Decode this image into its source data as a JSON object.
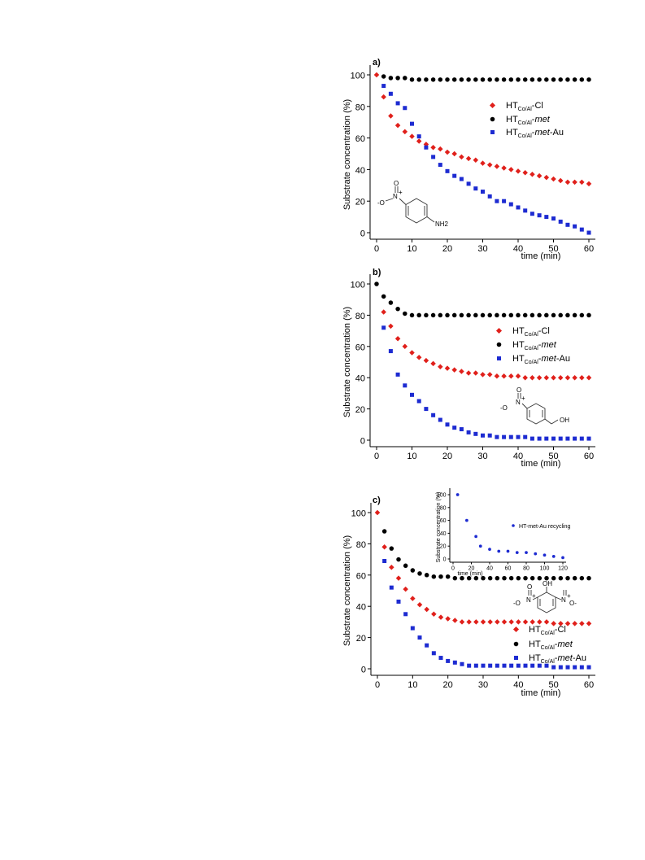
{
  "colors": {
    "red": "#e0201b",
    "black": "#000000",
    "blue": "#1d2bd1"
  },
  "chart_data": [
    {
      "panel": "a)",
      "type": "scatter",
      "xlabel": "time (min)",
      "ylabel": "Substrate concentration (%)",
      "xlim": [
        0,
        60
      ],
      "ylim": [
        0,
        100
      ],
      "xticks": [
        0,
        10,
        20,
        30,
        40,
        50,
        60
      ],
      "yticks": [
        0,
        20,
        40,
        60,
        80,
        100
      ],
      "legend_position": "center-right",
      "molecule": {
        "labels": [
          "O",
          "N",
          "+",
          "-O",
          "NH2"
        ]
      },
      "series": [
        {
          "name": "HT_Co/Al-Cl",
          "marker": "diamond",
          "color": "#e0201b",
          "x": [
            0,
            2,
            4,
            6,
            8,
            10,
            12,
            14,
            16,
            18,
            20,
            22,
            24,
            26,
            28,
            30,
            32,
            34,
            36,
            38,
            40,
            42,
            44,
            46,
            48,
            50,
            52,
            54,
            56,
            58,
            60
          ],
          "y": [
            100,
            86,
            74,
            68,
            64,
            61,
            58,
            56,
            54,
            53,
            51,
            50,
            48,
            47,
            46,
            44,
            43,
            42,
            41,
            40,
            39,
            38,
            37,
            36,
            35,
            34,
            33,
            32,
            32,
            32,
            31
          ]
        },
        {
          "name": "HT_Co/Al-met",
          "marker": "circle",
          "color": "#000000",
          "x": [
            2,
            4,
            6,
            8,
            10,
            12,
            14,
            16,
            18,
            20,
            22,
            24,
            26,
            28,
            30,
            32,
            34,
            36,
            38,
            40,
            42,
            44,
            46,
            48,
            50,
            52,
            54,
            56,
            58,
            60
          ],
          "y": [
            99,
            98,
            98,
            98,
            97,
            97,
            97,
            97,
            97,
            97,
            97,
            97,
            97,
            97,
            97,
            97,
            97,
            97,
            97,
            97,
            97,
            97,
            97,
            97,
            97,
            97,
            97,
            97,
            97,
            97
          ]
        },
        {
          "name": "HT_Co/Al-met-Au",
          "marker": "square",
          "color": "#1d2bd1",
          "x": [
            2,
            4,
            6,
            8,
            10,
            12,
            14,
            16,
            18,
            20,
            22,
            24,
            26,
            28,
            30,
            32,
            34,
            36,
            38,
            40,
            42,
            44,
            46,
            48,
            50,
            52,
            54,
            56,
            58,
            60
          ],
          "y": [
            93,
            88,
            82,
            79,
            69,
            61,
            54,
            48,
            43,
            39,
            36,
            34,
            31,
            28,
            26,
            23,
            20,
            20,
            18,
            16,
            14,
            12,
            11,
            10,
            9,
            7,
            5,
            4,
            2,
            0
          ]
        }
      ]
    },
    {
      "panel": "b)",
      "type": "scatter",
      "xlabel": "time (min)",
      "ylabel": "Substrate concentration (%)",
      "xlim": [
        0,
        60
      ],
      "ylim": [
        0,
        100
      ],
      "xticks": [
        0,
        10,
        20,
        30,
        40,
        50,
        60
      ],
      "yticks": [
        0,
        20,
        40,
        60,
        80,
        100
      ],
      "legend_position": "center-right",
      "molecule": {
        "labels": [
          "O",
          "N",
          "+",
          "-O",
          "OH"
        ]
      },
      "series": [
        {
          "name": "HT_Co/Al-Cl",
          "marker": "diamond",
          "color": "#e0201b",
          "x": [
            2,
            4,
            6,
            8,
            10,
            12,
            14,
            16,
            18,
            20,
            22,
            24,
            26,
            28,
            30,
            32,
            34,
            36,
            38,
            40,
            42,
            44,
            46,
            48,
            50,
            52,
            54,
            56,
            58,
            60
          ],
          "y": [
            82,
            73,
            65,
            60,
            56,
            53,
            51,
            49,
            47,
            46,
            45,
            44,
            43,
            43,
            42,
            42,
            41,
            41,
            41,
            41,
            40,
            40,
            40,
            40,
            40,
            40,
            40,
            40,
            40,
            40
          ]
        },
        {
          "name": "HT_Co/Al-met",
          "marker": "circle",
          "color": "#000000",
          "x": [
            0,
            2,
            4,
            6,
            8,
            10,
            12,
            14,
            16,
            18,
            20,
            22,
            24,
            26,
            28,
            30,
            32,
            34,
            36,
            38,
            40,
            42,
            44,
            46,
            48,
            50,
            52,
            54,
            56,
            58,
            60
          ],
          "y": [
            100,
            92,
            88,
            84,
            81,
            80,
            80,
            80,
            80,
            80,
            80,
            80,
            80,
            80,
            80,
            80,
            80,
            80,
            80,
            80,
            80,
            80,
            80,
            80,
            80,
            80,
            80,
            80,
            80,
            80,
            80
          ]
        },
        {
          "name": "HT_Co/Al-met-Au",
          "marker": "square",
          "color": "#1d2bd1",
          "x": [
            2,
            4,
            6,
            8,
            10,
            12,
            14,
            16,
            18,
            20,
            22,
            24,
            26,
            28,
            30,
            32,
            34,
            36,
            38,
            40,
            42,
            44,
            46,
            48,
            50,
            52,
            54,
            56,
            58,
            60
          ],
          "y": [
            72,
            57,
            42,
            35,
            29,
            25,
            20,
            16,
            13,
            10,
            8,
            7,
            5,
            4,
            3,
            3,
            2,
            2,
            2,
            2,
            2,
            1,
            1,
            1,
            1,
            1,
            1,
            1,
            1,
            1
          ]
        }
      ]
    },
    {
      "panel": "c)",
      "type": "scatter",
      "xlabel": "time (min)",
      "ylabel": "Substrate concentration (%)",
      "xlim": [
        0,
        60
      ],
      "ylim": [
        0,
        100
      ],
      "xticks": [
        0,
        10,
        20,
        30,
        40,
        50,
        60
      ],
      "yticks": [
        0,
        20,
        40,
        60,
        80,
        100
      ],
      "legend_position": "bottom-right",
      "molecule": {
        "labels": [
          "O",
          "N",
          "+",
          "OH",
          "N",
          "+",
          "-O",
          "O-"
        ]
      },
      "series": [
        {
          "name": "HT_Co/Al-Cl",
          "marker": "diamond",
          "color": "#e0201b",
          "x": [
            0,
            2,
            4,
            6,
            8,
            10,
            12,
            14,
            16,
            18,
            20,
            22,
            24,
            26,
            28,
            30,
            32,
            34,
            36,
            38,
            40,
            42,
            44,
            46,
            48,
            50,
            52,
            54,
            56,
            58,
            60
          ],
          "y": [
            100,
            78,
            65,
            58,
            51,
            45,
            41,
            38,
            35,
            33,
            32,
            31,
            30,
            30,
            30,
            30,
            30,
            30,
            30,
            30,
            30,
            30,
            30,
            30,
            30,
            29,
            29,
            29,
            29,
            29,
            29
          ]
        },
        {
          "name": "HT_Co/Al-met",
          "marker": "circle",
          "color": "#000000",
          "x": [
            2,
            4,
            6,
            8,
            10,
            12,
            14,
            16,
            18,
            20,
            22,
            24,
            26,
            28,
            30,
            32,
            34,
            36,
            38,
            40,
            42,
            44,
            46,
            48,
            50,
            52,
            54,
            56,
            58,
            60
          ],
          "y": [
            88,
            77,
            70,
            66,
            63,
            61,
            60,
            59,
            59,
            59,
            58,
            58,
            58,
            58,
            58,
            58,
            58,
            58,
            58,
            58,
            58,
            58,
            58,
            58,
            58,
            58,
            58,
            58,
            58,
            58
          ]
        },
        {
          "name": "HT_Co/Al-met-Au",
          "marker": "square",
          "color": "#1d2bd1",
          "x": [
            2,
            4,
            6,
            8,
            10,
            12,
            14,
            16,
            18,
            20,
            22,
            24,
            26,
            28,
            30,
            32,
            34,
            36,
            38,
            40,
            42,
            44,
            46,
            48,
            50,
            52,
            54,
            56,
            58,
            60
          ],
          "y": [
            69,
            52,
            43,
            35,
            26,
            20,
            15,
            10,
            7,
            5,
            4,
            3,
            2,
            2,
            2,
            2,
            2,
            2,
            2,
            2,
            2,
            2,
            2,
            2,
            1,
            1,
            1,
            1,
            1,
            1
          ]
        }
      ],
      "inset": {
        "type": "scatter",
        "xlabel": "time (min)",
        "ylabel": "Substrate concentration (%)",
        "xlim": [
          0,
          120
        ],
        "ylim": [
          0,
          100
        ],
        "xticks": [
          0,
          20,
          40,
          60,
          80,
          100,
          120
        ],
        "yticks": [
          0,
          20,
          40,
          60,
          80,
          100
        ],
        "legend": "HT-met-Au recycling",
        "series": [
          {
            "name": "HT-met-Au recycling",
            "marker": "circle",
            "color": "#1d2bd1",
            "x": [
              5,
              15,
              25,
              30,
              40,
              50,
              60,
              70,
              80,
              90,
              100,
              110,
              120
            ],
            "y": [
              100,
              60,
              35,
              20,
              15,
              12,
              12,
              10,
              10,
              8,
              6,
              4,
              2
            ]
          }
        ]
      }
    }
  ]
}
